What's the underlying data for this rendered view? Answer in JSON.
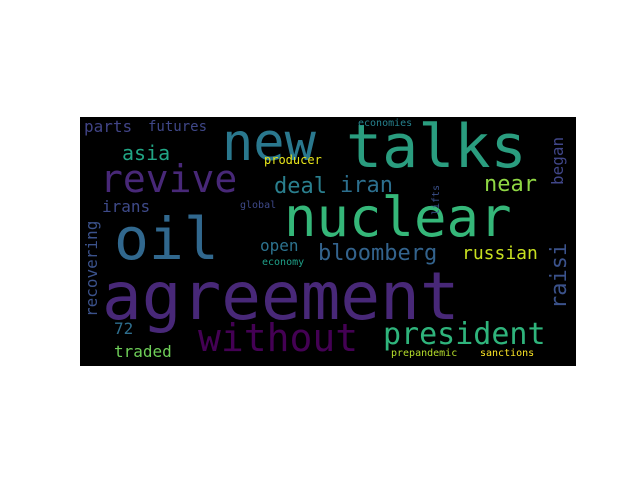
{
  "words": {
    "agreement": {
      "text": "agreement",
      "color": "#482878"
    },
    "oil": {
      "text": "oil",
      "color": "#31688e"
    },
    "nuclear": {
      "text": "nuclear",
      "color": "#35b779"
    },
    "talks": {
      "text": "talks",
      "color": "#2a9d7f"
    },
    "new": {
      "text": "new",
      "color": "#2a788e"
    },
    "revive": {
      "text": "revive",
      "color": "#482878"
    },
    "without": {
      "text": "without",
      "color": "#440154"
    },
    "president": {
      "text": "president",
      "color": "#2fb47c"
    },
    "bloomberg": {
      "text": "bloomberg",
      "color": "#33638d"
    },
    "raisi": {
      "text": "raisi",
      "color": "#3b528b"
    },
    "deal": {
      "text": "deal",
      "color": "#2a7f8e"
    },
    "iran": {
      "text": "iran",
      "color": "#2c6f8e"
    },
    "near": {
      "text": "near",
      "color": "#8fd744"
    },
    "asia": {
      "text": "asia",
      "color": "#21a685"
    },
    "russian": {
      "text": "russian",
      "color": "#c8e020"
    },
    "open": {
      "text": "open",
      "color": "#2c728e"
    },
    "irans": {
      "text": "irans",
      "color": "#3e4a89"
    },
    "recovering": {
      "text": "recovering",
      "color": "#3b528b"
    },
    "parts": {
      "text": "parts",
      "color": "#414487"
    },
    "futures": {
      "text": "futures",
      "color": "#3f4788"
    },
    "began": {
      "text": "began",
      "color": "#404688"
    },
    "72": {
      "text": "72",
      "color": "#2e6e8e"
    },
    "traded": {
      "text": "traded",
      "color": "#6ece58"
    },
    "producer": {
      "text": "producer",
      "color": "#e6e419"
    },
    "economies": {
      "text": "economies",
      "color": "#26828e"
    },
    "global": {
      "text": "global",
      "color": "#3e4989"
    },
    "lifts": {
      "text": "lifts",
      "color": "#3b518b"
    },
    "economy": {
      "text": "economy",
      "color": "#1fa088"
    },
    "prepandemic": {
      "text": "prepandemic",
      "color": "#b5de2b"
    },
    "sanctions": {
      "text": "sanctions",
      "color": "#fde725"
    }
  }
}
